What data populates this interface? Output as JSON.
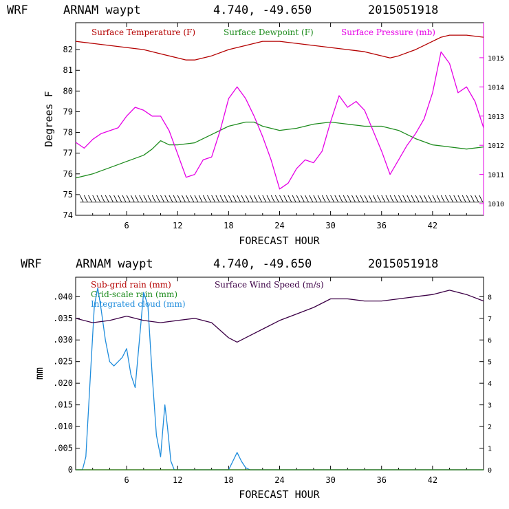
{
  "chart_data": [
    {
      "type": "line",
      "header": {
        "model": "WRF",
        "station": "ARNAM waypt",
        "coords": "4.740, -49.650",
        "run": "2015051918"
      },
      "xlabel": "FORECAST HOUR",
      "ylabel": "Degrees F",
      "xlim": [
        0,
        48
      ],
      "ylim": [
        74,
        83.3
      ],
      "x_ticks": [
        "6",
        "12",
        "18",
        "24",
        "30",
        "36",
        "42"
      ],
      "y_ticks": [
        "74",
        "75",
        "76",
        "77",
        "78",
        "79",
        "80",
        "81",
        "82"
      ],
      "y2lim": [
        1009.6,
        1016.2
      ],
      "y2_ticks": [
        "1010",
        "1011",
        "1012",
        "1013",
        "1014",
        "1015"
      ],
      "legend": [
        "Surface Temperature (F)",
        "Surface Dewpoint (F)",
        "Surface Pressure (mb)"
      ],
      "series": [
        {
          "name": "Surface Temperature (F)",
          "color": "#b40000",
          "axis": "left",
          "x": [
            0,
            2,
            4,
            6,
            8,
            10,
            12,
            13,
            14,
            16,
            18,
            20,
            22,
            24,
            26,
            28,
            30,
            32,
            34,
            36,
            37,
            38,
            40,
            42,
            43,
            44,
            46,
            48
          ],
          "values": [
            82.4,
            82.3,
            82.2,
            82.1,
            82.0,
            81.8,
            81.6,
            81.5,
            81.5,
            81.7,
            82.0,
            82.2,
            82.4,
            82.4,
            82.3,
            82.2,
            82.1,
            82.0,
            81.9,
            81.7,
            81.6,
            81.7,
            82.0,
            82.4,
            82.6,
            82.7,
            82.7,
            82.6
          ]
        },
        {
          "name": "Surface Dewpoint (F)",
          "color": "#1e8c1e",
          "axis": "left",
          "x": [
            0,
            2,
            4,
            6,
            8,
            9,
            10,
            11,
            12,
            14,
            16,
            18,
            20,
            21,
            22,
            24,
            26,
            28,
            30,
            32,
            34,
            36,
            38,
            40,
            42,
            44,
            46,
            48
          ],
          "values": [
            75.8,
            76.0,
            76.3,
            76.6,
            76.9,
            77.2,
            77.6,
            77.4,
            77.4,
            77.5,
            77.9,
            78.3,
            78.5,
            78.5,
            78.3,
            78.1,
            78.2,
            78.4,
            78.5,
            78.4,
            78.3,
            78.3,
            78.1,
            77.7,
            77.4,
            77.3,
            77.2,
            77.3
          ]
        },
        {
          "name": "Surface Pressure (mb)",
          "color": "#e600e6",
          "axis": "right",
          "x": [
            0,
            1,
            2,
            3,
            4,
            5,
            6,
            7,
            8,
            9,
            10,
            11,
            12,
            13,
            14,
            15,
            16,
            17,
            18,
            19,
            20,
            21,
            22,
            23,
            24,
            25,
            26,
            27,
            28,
            29,
            30,
            31,
            32,
            33,
            34,
            35,
            36,
            37,
            38,
            39,
            40,
            41,
            42,
            43,
            44,
            45,
            46,
            47,
            48
          ],
          "values": [
            1012.1,
            1011.9,
            1012.2,
            1012.4,
            1012.5,
            1012.6,
            1013.0,
            1013.3,
            1013.2,
            1013.0,
            1013.0,
            1012.5,
            1011.7,
            1010.9,
            1011.0,
            1011.5,
            1011.6,
            1012.5,
            1013.6,
            1014.0,
            1013.6,
            1013.0,
            1012.3,
            1011.5,
            1010.5,
            1010.7,
            1011.2,
            1011.5,
            1011.4,
            1011.8,
            1012.8,
            1013.7,
            1013.3,
            1013.5,
            1013.2,
            1012.5,
            1011.8,
            1011.0,
            1011.5,
            1012.0,
            1012.4,
            1012.9,
            1013.8,
            1015.2,
            1014.8,
            1013.8,
            1014.0,
            1013.5,
            1012.6
          ]
        }
      ],
      "wind_barbs": {
        "color": "#000000",
        "level": 74.8,
        "direction": "northerly, light"
      }
    },
    {
      "type": "line",
      "header": {
        "model": "WRF",
        "station": "ARNAM waypt",
        "coords": "4.740, -49.650",
        "run": "2015051918"
      },
      "xlabel": "FORECAST HOUR",
      "ylabel": "mm",
      "xlim": [
        0,
        48
      ],
      "ylim": [
        0,
        0.0445
      ],
      "x_ticks": [
        "6",
        "12",
        "18",
        "24",
        "30",
        "36",
        "42"
      ],
      "y_ticks": [
        "0",
        ".005",
        ".010",
        ".015",
        ".020",
        ".025",
        ".030",
        ".035",
        ".040"
      ],
      "y2lim": [
        0,
        8.9
      ],
      "y2_ticks": [
        "0",
        "1",
        "2",
        "3",
        "4",
        "5",
        "6",
        "7",
        "8"
      ],
      "legend": [
        "Sub-grid rain (mm)",
        "Grid-scale rain (mm)",
        "Integrated cloud (mm)",
        "Surface Wind Speed (m/s)"
      ],
      "legend_colors": [
        "#b40000",
        "#1e8c1e",
        "#1e8cdc",
        "#3c0046"
      ],
      "series": [
        {
          "name": "Integrated cloud (mm)",
          "color": "#1e8cdc",
          "axis": "left",
          "x": [
            0,
            0.8,
            1.2,
            1.8,
            2.2,
            2.6,
            3.0,
            3.5,
            4.0,
            4.5,
            5.0,
            5.5,
            6.0,
            6.5,
            7.0,
            7.5,
            8.0,
            8.5,
            9.0,
            9.5,
            10.0,
            10.2,
            10.5,
            10.8,
            11.2,
            11.6,
            12.0,
            17.5,
            18.0,
            18.5,
            19.0,
            19.5,
            20.0,
            20.5,
            48
          ],
          "values": [
            0,
            0,
            0.003,
            0.024,
            0.038,
            0.042,
            0.037,
            0.03,
            0.025,
            0.024,
            0.025,
            0.026,
            0.028,
            0.022,
            0.019,
            0.03,
            0.041,
            0.038,
            0.022,
            0.008,
            0.003,
            0.008,
            0.015,
            0.01,
            0.002,
            0,
            0,
            0,
            0,
            0.002,
            0.004,
            0.002,
            0.0005,
            0,
            0
          ]
        },
        {
          "name": "Sub-grid rain (mm)",
          "color": "#b40000",
          "axis": "left",
          "x": [
            0,
            48
          ],
          "values": [
            0,
            0
          ]
        },
        {
          "name": "Grid-scale rain (mm)",
          "color": "#1e8c1e",
          "axis": "left",
          "x": [
            0,
            48
          ],
          "values": [
            0,
            0
          ]
        },
        {
          "name": "Surface Wind Speed (m/s)",
          "color": "#3c0046",
          "axis": "right",
          "x": [
            0,
            2,
            4,
            6,
            8,
            10,
            12,
            14,
            16,
            18,
            19,
            20,
            22,
            24,
            26,
            28,
            30,
            32,
            34,
            36,
            38,
            40,
            42,
            44,
            46,
            48
          ],
          "values": [
            7.0,
            6.8,
            6.9,
            7.1,
            6.9,
            6.8,
            6.9,
            7.0,
            6.8,
            6.1,
            5.9,
            6.1,
            6.5,
            6.9,
            7.2,
            7.5,
            7.9,
            7.9,
            7.8,
            7.8,
            7.9,
            8.0,
            8.1,
            8.3,
            8.1,
            7.8
          ]
        }
      ]
    }
  ]
}
